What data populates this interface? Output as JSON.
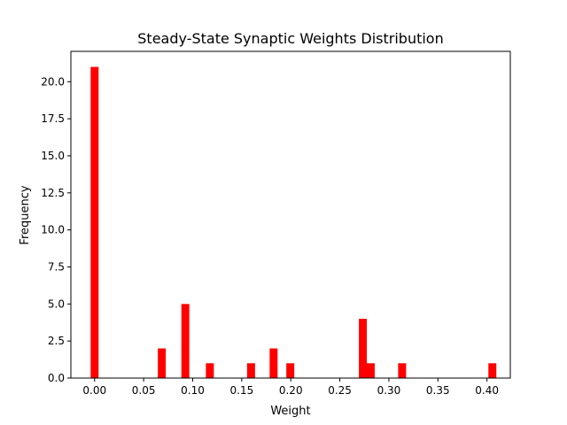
{
  "chart_data": {
    "type": "bar",
    "title": "Steady-State Synaptic Weights Distribution",
    "xlabel": "Weight",
    "ylabel": "Frequency",
    "xlim": [
      -0.0242,
      0.4238
    ],
    "ylim": [
      0,
      22.05
    ],
    "bin_width": 0.0081,
    "bar_color": "#ff0000",
    "grid": false,
    "x_ticks": [
      "0.00",
      "0.05",
      "0.10",
      "0.15",
      "0.20",
      "0.25",
      "0.30",
      "0.35",
      "0.40"
    ],
    "x_tick_values": [
      0.0,
      0.05,
      0.1,
      0.15,
      0.2,
      0.25,
      0.3,
      0.35,
      0.4
    ],
    "y_ticks": [
      "0.0",
      "2.5",
      "5.0",
      "7.5",
      "10.0",
      "12.5",
      "15.0",
      "17.5",
      "20.0"
    ],
    "y_tick_values": [
      0,
      2.5,
      5.0,
      7.5,
      10.0,
      12.5,
      15.0,
      17.5,
      20.0
    ],
    "bars": [
      {
        "x": 0.0,
        "value": 21
      },
      {
        "x": 0.0685,
        "value": 2
      },
      {
        "x": 0.0925,
        "value": 5
      },
      {
        "x": 0.1175,
        "value": 1
      },
      {
        "x": 0.1595,
        "value": 1
      },
      {
        "x": 0.1825,
        "value": 2
      },
      {
        "x": 0.1995,
        "value": 1
      },
      {
        "x": 0.2735,
        "value": 4
      },
      {
        "x": 0.2815,
        "value": 1
      },
      {
        "x": 0.3135,
        "value": 1
      },
      {
        "x": 0.4055,
        "value": 1
      }
    ]
  }
}
